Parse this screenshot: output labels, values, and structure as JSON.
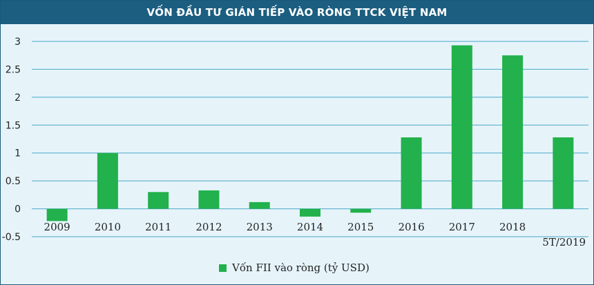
{
  "chart_data": {
    "type": "bar",
    "title": "VỐN ĐẦU TƯ GIÁN TIẾP VÀO RÒNG TTCK VIỆT NAM",
    "categories": [
      "2009",
      "2010",
      "2011",
      "2012",
      "2013",
      "2014",
      "2015",
      "2016",
      "2017",
      "2018",
      "5T/2019"
    ],
    "series": [
      {
        "name": "Vốn FII vào ròng (tỷ USD)",
        "values": [
          -0.22,
          1.0,
          0.3,
          0.33,
          0.12,
          -0.14,
          -0.07,
          1.28,
          2.93,
          2.75,
          1.28
        ]
      }
    ],
    "yticks": [
      "-0.5",
      "0",
      "0.5",
      "1",
      "1.5",
      "2",
      "2.5",
      "3"
    ],
    "ylim": [
      -0.5,
      3.0
    ],
    "grid": true,
    "legend": "bottom-center",
    "colors": {
      "bar": "#22b14c",
      "grid": "#4aa6c8",
      "title_bg": "#1b5e80",
      "plot_bg": "#e6f4fa"
    }
  }
}
